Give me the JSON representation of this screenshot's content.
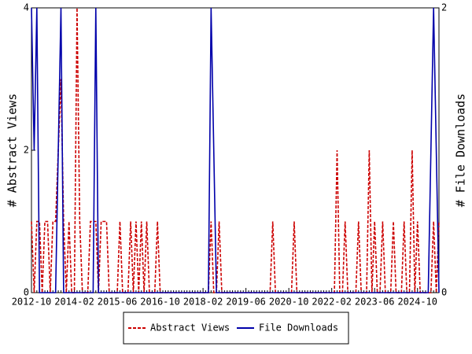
{
  "chart_data": {
    "type": "line",
    "y_label": "# Abstract Views",
    "y2_label": "# File Downloads",
    "categories": [
      "2012-10",
      null,
      null,
      null,
      null,
      null,
      null,
      null,
      null,
      null,
      null,
      null,
      null,
      null,
      null,
      null,
      "2014-02",
      null,
      null,
      null,
      null,
      null,
      null,
      null,
      null,
      null,
      null,
      null,
      null,
      null,
      null,
      null,
      "2015-06",
      null,
      null,
      null,
      null,
      null,
      null,
      null,
      null,
      null,
      null,
      null,
      null,
      null,
      null,
      null,
      "2016-10",
      null,
      null,
      null,
      null,
      null,
      null,
      null,
      null,
      null,
      null,
      null,
      null,
      null,
      null,
      null,
      "2018-02",
      null,
      null,
      null,
      null,
      null,
      null,
      null,
      null,
      null,
      null,
      null,
      null,
      null,
      null,
      null,
      "2019-06",
      null,
      null,
      null,
      null,
      null,
      null,
      null,
      null,
      null,
      null,
      null,
      null,
      null,
      null,
      null,
      "2020-10",
      null,
      null,
      null,
      null,
      null,
      null,
      null,
      null,
      null,
      null,
      null,
      null,
      null,
      null,
      null,
      "2022-02",
      null,
      null,
      null,
      null,
      null,
      null,
      null,
      null,
      null,
      null,
      null,
      null,
      null,
      null,
      null,
      "2023-06",
      null,
      null,
      null,
      null,
      null,
      null,
      null,
      null,
      null,
      null,
      null,
      null,
      null,
      null,
      null,
      "2024-10",
      null,
      null,
      null,
      null,
      null,
      null,
      null,
      null
    ],
    "series": [
      {
        "name": "Abstract Views",
        "color": "#cc0000",
        "dash": true,
        "values": [
          1,
          0,
          1,
          1,
          0,
          1,
          1,
          0,
          1,
          1,
          2,
          3,
          1,
          0,
          1,
          0,
          0,
          4,
          1,
          0,
          0,
          0,
          1,
          1,
          1,
          0,
          1,
          1,
          1,
          0,
          0,
          0,
          0,
          1,
          0,
          0,
          0,
          1,
          0,
          1,
          0,
          1,
          0,
          1,
          0,
          0,
          0,
          1,
          0,
          0,
          0,
          0,
          0,
          0,
          0,
          0,
          0,
          0,
          0,
          0,
          0,
          0,
          0,
          0,
          0,
          0,
          0,
          1,
          0,
          0,
          1,
          0,
          0,
          0,
          0,
          0,
          0,
          0,
          0,
          0,
          0,
          0,
          0,
          0,
          0,
          0,
          0,
          0,
          0,
          0,
          1,
          0,
          0,
          0,
          0,
          0,
          0,
          0,
          1,
          0,
          0,
          0,
          0,
          0,
          0,
          0,
          0,
          0,
          0,
          0,
          0,
          0,
          0,
          0,
          2,
          0,
          0,
          1,
          0,
          0,
          0,
          0,
          1,
          0,
          0,
          0,
          2,
          0,
          1,
          0,
          0,
          1,
          0,
          0,
          0,
          1,
          0,
          0,
          0,
          1,
          0,
          0,
          2,
          0,
          1,
          0,
          0,
          0,
          0,
          0,
          1,
          0,
          1
        ]
      },
      {
        "name": "File Downloads",
        "color": "#0000aa",
        "dash": false,
        "axis": "y2",
        "values": [
          2,
          1,
          2,
          0,
          0,
          0,
          0,
          0,
          0,
          0,
          1,
          2,
          0,
          0,
          0,
          0,
          0,
          0,
          0,
          0,
          0,
          0,
          0,
          0,
          2,
          0,
          0,
          0,
          0,
          0,
          0,
          0,
          0,
          0,
          0,
          0,
          0,
          0,
          0,
          0,
          0,
          0,
          0,
          0,
          0,
          0,
          0,
          0,
          0,
          0,
          0,
          0,
          0,
          0,
          0,
          0,
          0,
          0,
          0,
          0,
          0,
          0,
          0,
          0,
          0,
          0,
          0,
          2,
          1,
          0,
          0,
          0,
          0,
          0,
          0,
          0,
          0,
          0,
          0,
          0,
          0,
          0,
          0,
          0,
          0,
          0,
          0,
          0,
          0,
          0,
          0,
          0,
          0,
          0,
          0,
          0,
          0,
          0,
          0,
          0,
          0,
          0,
          0,
          0,
          0,
          0,
          0,
          0,
          0,
          0,
          0,
          0,
          0,
          0,
          0,
          0,
          0,
          0,
          0,
          0,
          0,
          0,
          0,
          0,
          0,
          0,
          0,
          0,
          0,
          0,
          0,
          0,
          0,
          0,
          0,
          0,
          0,
          0,
          0,
          0,
          0,
          0,
          0,
          0,
          0,
          0,
          0,
          0,
          0,
          1,
          2,
          1,
          0
        ]
      }
    ],
    "ylim": [
      0,
      4
    ],
    "yticks": [
      0,
      2,
      4
    ],
    "y2lim": [
      0,
      2
    ],
    "y2ticks": [
      0,
      2
    ],
    "legend": "bottom"
  }
}
